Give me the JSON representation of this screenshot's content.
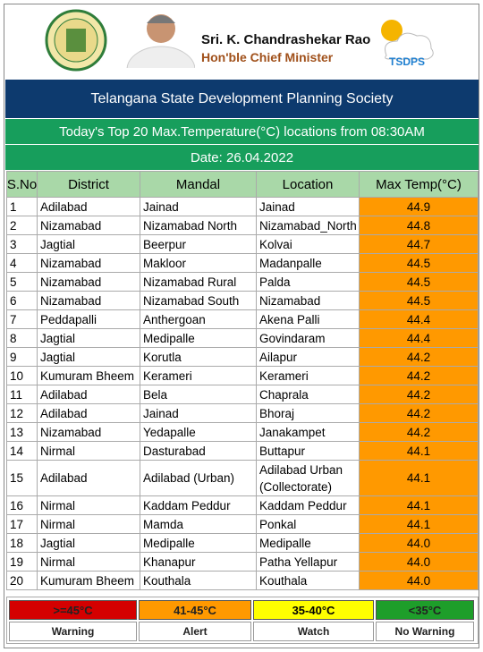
{
  "header": {
    "name": "Sri. K. Chandrashekar Rao",
    "designation": "Hon'ble Chief Minister",
    "logo_text": "TSDPS"
  },
  "title": "Telangana State Development Planning Society",
  "subtitle": "Today's Top 20 Max.Temperature(°C) locations from 08:30AM",
  "date": "Date: 26.04.2022",
  "table": {
    "columns": [
      "S.No",
      "District",
      "Mandal",
      "Location",
      "Max Temp(°C)"
    ],
    "rows": [
      [
        "1",
        "Adilabad",
        "Jainad",
        "Jainad",
        "44.9"
      ],
      [
        "2",
        "Nizamabad",
        "Nizamabad North",
        "Nizamabad_North",
        "44.8"
      ],
      [
        "3",
        "Jagtial",
        "Beerpur",
        "Kolvai",
        "44.7"
      ],
      [
        "4",
        "Nizamabad",
        "Makloor",
        "Madanpalle",
        "44.5"
      ],
      [
        "5",
        "Nizamabad",
        "Nizamabad Rural",
        "Palda",
        "44.5"
      ],
      [
        "6",
        "Nizamabad",
        "Nizamabad South",
        "Nizamabad",
        "44.5"
      ],
      [
        "7",
        "Peddapalli",
        "Anthergoan",
        "Akena Palli",
        "44.4"
      ],
      [
        "8",
        "Jagtial",
        "Medipalle",
        "Govindaram",
        "44.4"
      ],
      [
        "9",
        "Jagtial",
        "Korutla",
        "Ailapur",
        "44.2"
      ],
      [
        "10",
        "Kumuram Bheem",
        "Kerameri",
        "Kerameri",
        "44.2"
      ],
      [
        "11",
        "Adilabad",
        "Bela",
        "Chaprala",
        "44.2"
      ],
      [
        "12",
        "Adilabad",
        "Jainad",
        "Bhoraj",
        "44.2"
      ],
      [
        "13",
        "Nizamabad",
        "Yedapalle",
        "Janakampet",
        "44.2"
      ],
      [
        "14",
        "Nirmal",
        "Dasturabad",
        "Buttapur",
        "44.1"
      ],
      [
        "15",
        "Adilabad",
        "Adilabad (Urban)",
        "Adilabad Urban (Collectorate)",
        "44.1"
      ],
      [
        "16",
        "Nirmal",
        "Kaddam Peddur",
        "Kaddam Peddur",
        "44.1"
      ],
      [
        "17",
        "Nirmal",
        "Mamda",
        "Ponkal",
        "44.1"
      ],
      [
        "18",
        "Jagtial",
        "Medipalle",
        "Medipalle",
        "44.0"
      ],
      [
        "19",
        "Nirmal",
        "Khanapur",
        "Patha Yellapur",
        "44.0"
      ],
      [
        "20",
        "Kumuram Bheem",
        "Kouthala",
        "Kouthala",
        "44.0"
      ]
    ]
  },
  "legend": [
    {
      "range": ">=45°C",
      "label": "Warning",
      "color": "#d40000"
    },
    {
      "range": "41-45°C",
      "label": "Alert",
      "color": "#ff9900"
    },
    {
      "range": "35-40°C",
      "label": "Watch",
      "color": "#ffff00"
    },
    {
      "range": "<35°C",
      "label": "No Warning",
      "color": "#1e9e2a"
    }
  ]
}
